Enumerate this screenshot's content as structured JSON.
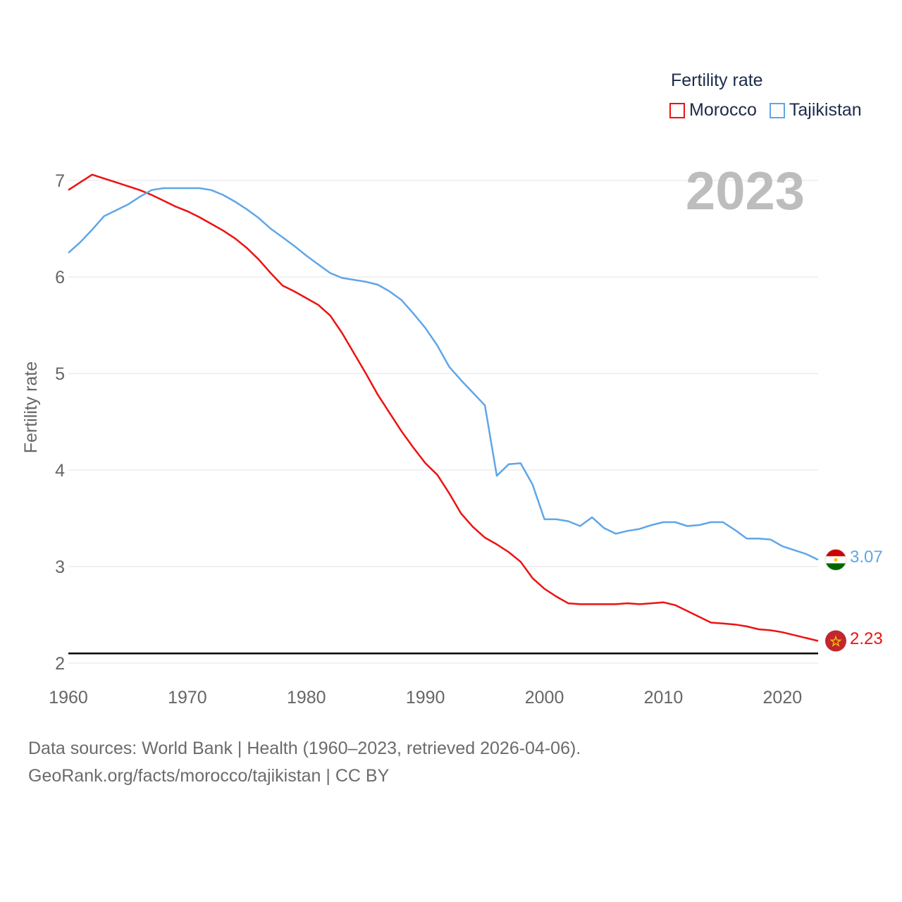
{
  "legend": {
    "title": "Fertility rate",
    "items": [
      {
        "label": "Morocco",
        "color": "#ee1111"
      },
      {
        "label": "Tajikistan",
        "color": "#5fa6e8"
      }
    ]
  },
  "year_label": "2023",
  "footer": {
    "line1": "Data sources: World Bank | Health (1960–2023, retrieved 2026-04-06).",
    "line2": "GeoRank.org/facts/morocco/tajikistan | CC BY"
  },
  "chart_data": {
    "type": "line",
    "ylabel": "Fertility rate",
    "xlabel": "",
    "xlim": [
      1960,
      2023
    ],
    "ylim": [
      2,
      7.3
    ],
    "xticks": [
      1960,
      1970,
      1980,
      1990,
      2000,
      2010,
      2020
    ],
    "yticks": [
      2,
      3,
      4,
      5,
      6,
      7
    ],
    "reference_line": {
      "y": 2.1,
      "color": "#000000"
    },
    "x": [
      1960,
      1961,
      1962,
      1963,
      1964,
      1965,
      1966,
      1967,
      1968,
      1969,
      1970,
      1971,
      1972,
      1973,
      1974,
      1975,
      1976,
      1977,
      1978,
      1979,
      1980,
      1981,
      1982,
      1983,
      1984,
      1985,
      1986,
      1987,
      1988,
      1989,
      1990,
      1991,
      1992,
      1993,
      1994,
      1995,
      1996,
      1997,
      1998,
      1999,
      2000,
      2001,
      2002,
      2003,
      2004,
      2005,
      2006,
      2007,
      2008,
      2009,
      2010,
      2011,
      2012,
      2013,
      2014,
      2015,
      2016,
      2017,
      2018,
      2019,
      2020,
      2021,
      2022,
      2023
    ],
    "series": [
      {
        "name": "Morocco",
        "color": "#ee1111",
        "end_label": "2.23",
        "values": [
          6.9,
          6.98,
          7.06,
          7.02,
          6.98,
          6.94,
          6.9,
          6.85,
          6.79,
          6.73,
          6.68,
          6.62,
          6.55,
          6.48,
          6.4,
          6.3,
          6.18,
          6.04,
          5.91,
          5.85,
          5.78,
          5.71,
          5.6,
          5.42,
          5.21,
          5.0,
          4.78,
          4.59,
          4.4,
          4.23,
          4.07,
          3.95,
          3.76,
          3.55,
          3.41,
          3.3,
          3.23,
          3.15,
          3.05,
          2.88,
          2.77,
          2.69,
          2.62,
          2.61,
          2.61,
          2.61,
          2.61,
          2.62,
          2.61,
          2.62,
          2.63,
          2.6,
          2.54,
          2.48,
          2.42,
          2.41,
          2.4,
          2.38,
          2.35,
          2.34,
          2.32,
          2.29,
          2.26,
          2.23
        ]
      },
      {
        "name": "Tajikistan",
        "color": "#5fa6e8",
        "end_label": "3.07",
        "values": [
          6.25,
          6.36,
          6.49,
          6.63,
          6.69,
          6.75,
          6.83,
          6.9,
          6.92,
          6.92,
          6.92,
          6.92,
          6.9,
          6.85,
          6.78,
          6.7,
          6.61,
          6.5,
          6.41,
          6.32,
          6.22,
          6.13,
          6.04,
          5.99,
          5.97,
          5.95,
          5.92,
          5.85,
          5.76,
          5.62,
          5.47,
          5.29,
          5.07,
          4.93,
          4.8,
          4.67,
          3.94,
          4.06,
          4.07,
          3.85,
          3.49,
          3.49,
          3.47,
          3.42,
          3.51,
          3.4,
          3.34,
          3.37,
          3.39,
          3.43,
          3.46,
          3.46,
          3.42,
          3.43,
          3.46,
          3.46,
          3.38,
          3.29,
          3.29,
          3.28,
          3.21,
          3.17,
          3.13,
          3.07
        ]
      }
    ]
  }
}
